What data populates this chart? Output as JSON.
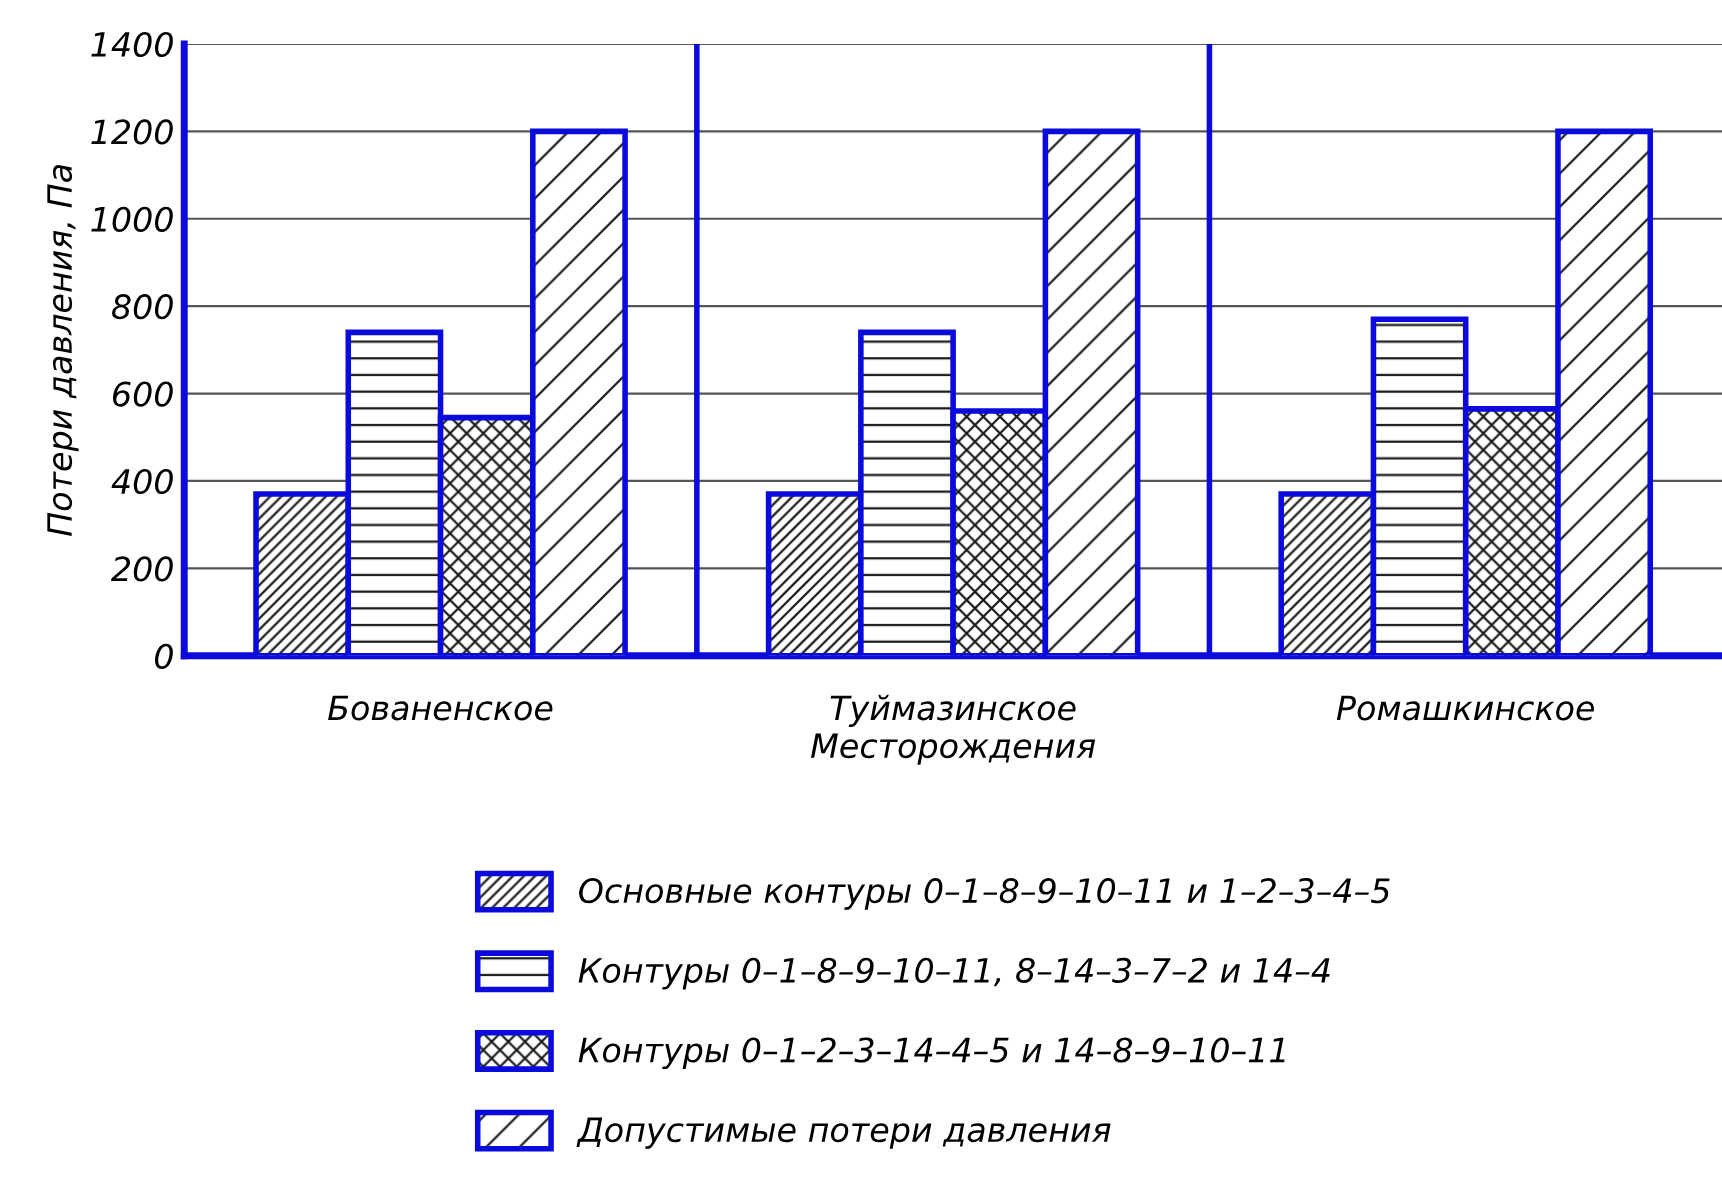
{
  "chart_data": {
    "type": "bar",
    "categories": [
      "Бованенское",
      "Туймазинское",
      "Ромашкинское"
    ],
    "xlabel": "Месторождения",
    "ylabel": "Потери давления, Па",
    "ylim": [
      0,
      1400
    ],
    "yticks": [
      0,
      200,
      400,
      600,
      800,
      1000,
      1200,
      1400
    ],
    "grid": "y",
    "legend": "bottom",
    "series": [
      {
        "name": "Основные контуры 0–1–8–9–10–11 и 1–2–3–4–5",
        "color": "#0a0adc",
        "values": [
          370,
          370,
          370
        ]
      },
      {
        "name": "Контуры 0–1–8–9–10–11, 8–14–3–7–2 и 14–4",
        "color": "#0a0adc",
        "values": [
          740,
          740,
          770
        ]
      },
      {
        "name": "Контуры 0–1–2–3–14–4–5 и 14–8–9–10–11",
        "color": "#0a0adc",
        "values": [
          545,
          560,
          565
        ]
      },
      {
        "name": "Допустимые потери давления",
        "color": "#0a0adc",
        "values": [
          1200,
          1200,
          1200
        ]
      }
    ]
  }
}
